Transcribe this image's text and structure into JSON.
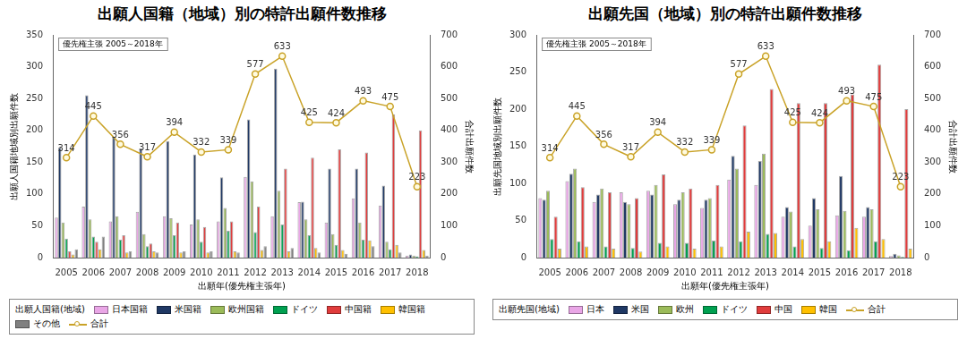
{
  "chart_data": [
    {
      "type": "bar",
      "title": "出願人国籍（地域）別の特許出願件数推移",
      "annotations": [
        "優先権主張 2005～2018年"
      ],
      "x_label": "出願年(優先権主張年)",
      "y_label": "出願人国籍地域別出願件数",
      "y2_label": "合計出願件数",
      "legend_title": "出願人国籍(地域)",
      "legend": "bottom",
      "grid": false,
      "categories": [
        "2005",
        "2006",
        "2007",
        "2008",
        "2009",
        "2010",
        "2011",
        "2012",
        "2013",
        "2014",
        "2015",
        "2016",
        "2017",
        "2018"
      ],
      "ylim": [
        0,
        350
      ],
      "yticks": [
        0,
        50,
        100,
        150,
        200,
        250,
        300,
        350
      ],
      "y2lim": [
        0,
        700
      ],
      "y2ticks": [
        0,
        100,
        200,
        300,
        400,
        500,
        600,
        700
      ],
      "series": [
        {
          "name": "日本国籍",
          "color": "#e9a6e6",
          "values": [
            63,
            80,
            57,
            72,
            65,
            52,
            57,
            127,
            65,
            87,
            55,
            93,
            82,
            3
          ]
        },
        {
          "name": "米国籍",
          "color": "#1f3864",
          "values": [
            173,
            255,
            190,
            172,
            183,
            162,
            126,
            217,
            297,
            88,
            140,
            140,
            113,
            5
          ]
        },
        {
          "name": "欧州国籍",
          "color": "#9bbb59",
          "values": [
            55,
            60,
            65,
            37,
            62,
            60,
            78,
            120,
            105,
            60,
            37,
            55,
            25,
            3
          ]
        },
        {
          "name": "ドイツ",
          "color": "#00a050",
          "values": [
            30,
            33,
            28,
            18,
            35,
            25,
            42,
            40,
            52,
            35,
            20,
            28,
            13,
            2
          ]
        },
        {
          "name": "中国籍",
          "color": "#e03c3c",
          "values": [
            10,
            25,
            35,
            22,
            55,
            48,
            57,
            80,
            140,
            157,
            170,
            165,
            225,
            200
          ]
        },
        {
          "name": "韓国籍",
          "color": "#ffc000",
          "values": [
            5,
            13,
            8,
            10,
            8,
            8,
            10,
            12,
            10,
            15,
            12,
            27,
            20,
            12
          ]
        },
        {
          "name": "その他",
          "color": "#808080",
          "values": [
            13,
            33,
            10,
            8,
            10,
            10,
            8,
            18,
            15,
            8,
            6,
            18,
            8,
            3
          ]
        },
        {
          "name": "合計",
          "color": "#c9a227",
          "type": "line",
          "axis": "y2",
          "marker": "circle",
          "line_style": "solid",
          "data_labels": true,
          "values": [
            314,
            445,
            356,
            317,
            394,
            332,
            339,
            577,
            633,
            425,
            424,
            493,
            475,
            223
          ]
        }
      ]
    },
    {
      "type": "bar",
      "title": "出願先国（地域）別の特許出願件数推移",
      "annotations": [
        "優先権主張 2005～2018年"
      ],
      "x_label": "出願年(優先権主張年)",
      "y_label": "出願先国地域別出願件数",
      "y2_label": "合計出願件数",
      "legend_title": "出願先国(地域)",
      "legend": "bottom",
      "grid": false,
      "categories": [
        "2005",
        "2006",
        "2007",
        "2008",
        "2009",
        "2010",
        "2011",
        "2012",
        "2013",
        "2014",
        "2015",
        "2016",
        "2017",
        "2018"
      ],
      "ylim": [
        0,
        300
      ],
      "yticks": [
        0,
        50,
        100,
        150,
        200,
        250,
        300
      ],
      "y2lim": [
        0,
        700
      ],
      "y2ticks": [
        0,
        100,
        200,
        300,
        400,
        500,
        600,
        700
      ],
      "series": [
        {
          "name": "日本",
          "color": "#e9a6e6",
          "values": [
            80,
            103,
            75,
            88,
            90,
            72,
            67,
            105,
            98,
            55,
            43,
            57,
            55,
            2
          ]
        },
        {
          "name": "米国",
          "color": "#1f3864",
          "values": [
            78,
            113,
            85,
            75,
            85,
            78,
            78,
            137,
            130,
            68,
            80,
            110,
            68,
            5
          ]
        },
        {
          "name": "欧州",
          "color": "#9bbb59",
          "values": [
            90,
            120,
            93,
            72,
            98,
            88,
            80,
            120,
            140,
            62,
            65,
            63,
            65,
            3
          ]
        },
        {
          "name": "ドイツ",
          "color": "#00a050",
          "values": [
            25,
            22,
            15,
            13,
            20,
            20,
            23,
            22,
            32,
            15,
            13,
            10,
            22,
            1
          ]
        },
        {
          "name": "中国",
          "color": "#e03c3c",
          "values": [
            55,
            95,
            88,
            80,
            112,
            93,
            98,
            178,
            227,
            208,
            208,
            220,
            260,
            200
          ]
        },
        {
          "name": "韓国",
          "color": "#ffc000",
          "values": [
            12,
            15,
            12,
            8,
            15,
            12,
            15,
            35,
            33,
            25,
            22,
            40,
            25,
            12
          ]
        },
        {
          "name": "合計",
          "color": "#c9a227",
          "type": "line",
          "axis": "y2",
          "marker": "circle",
          "line_style": "solid",
          "data_labels": true,
          "values": [
            314,
            445,
            356,
            317,
            394,
            332,
            339,
            577,
            633,
            425,
            424,
            493,
            475,
            223
          ]
        }
      ]
    }
  ]
}
